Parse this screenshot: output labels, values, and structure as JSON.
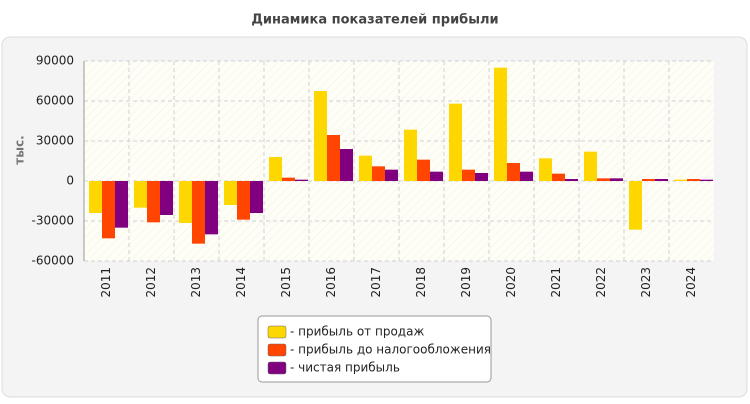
{
  "chart_data": {
    "type": "bar",
    "title": "Динамика показателей прибыли",
    "y_label": "тыс.",
    "categories": [
      "2011",
      "2012",
      "2013",
      "2014",
      "2015",
      "2016",
      "2017",
      "2018",
      "2019",
      "2020",
      "2021",
      "2022",
      "2023",
      "2024"
    ],
    "series": [
      {
        "name": "- прибыль от продаж",
        "color": "#ffd700",
        "values": [
          -24000,
          -20000,
          -31500,
          -18000,
          18000,
          67500,
          19000,
          38500,
          58000,
          85000,
          17000,
          22000,
          -36500,
          1000
        ]
      },
      {
        "name": "- прибыль до налогообложения",
        "color": "#ff4500",
        "values": [
          -43000,
          -31000,
          -47000,
          -29000,
          2500,
          34500,
          11000,
          16000,
          8500,
          13500,
          5500,
          2000,
          1500,
          1500
        ]
      },
      {
        "name": "- чистая прибыль",
        "color": "#800080",
        "values": [
          -35000,
          -25500,
          -40000,
          -24000,
          1000,
          24000,
          8500,
          7000,
          6000,
          7000,
          1500,
          2000,
          1500,
          1000
        ]
      }
    ],
    "ylim": [
      -60000,
      90000
    ],
    "yticks": [
      -60000,
      -30000,
      0,
      30000,
      60000,
      90000
    ],
    "grid": true
  }
}
